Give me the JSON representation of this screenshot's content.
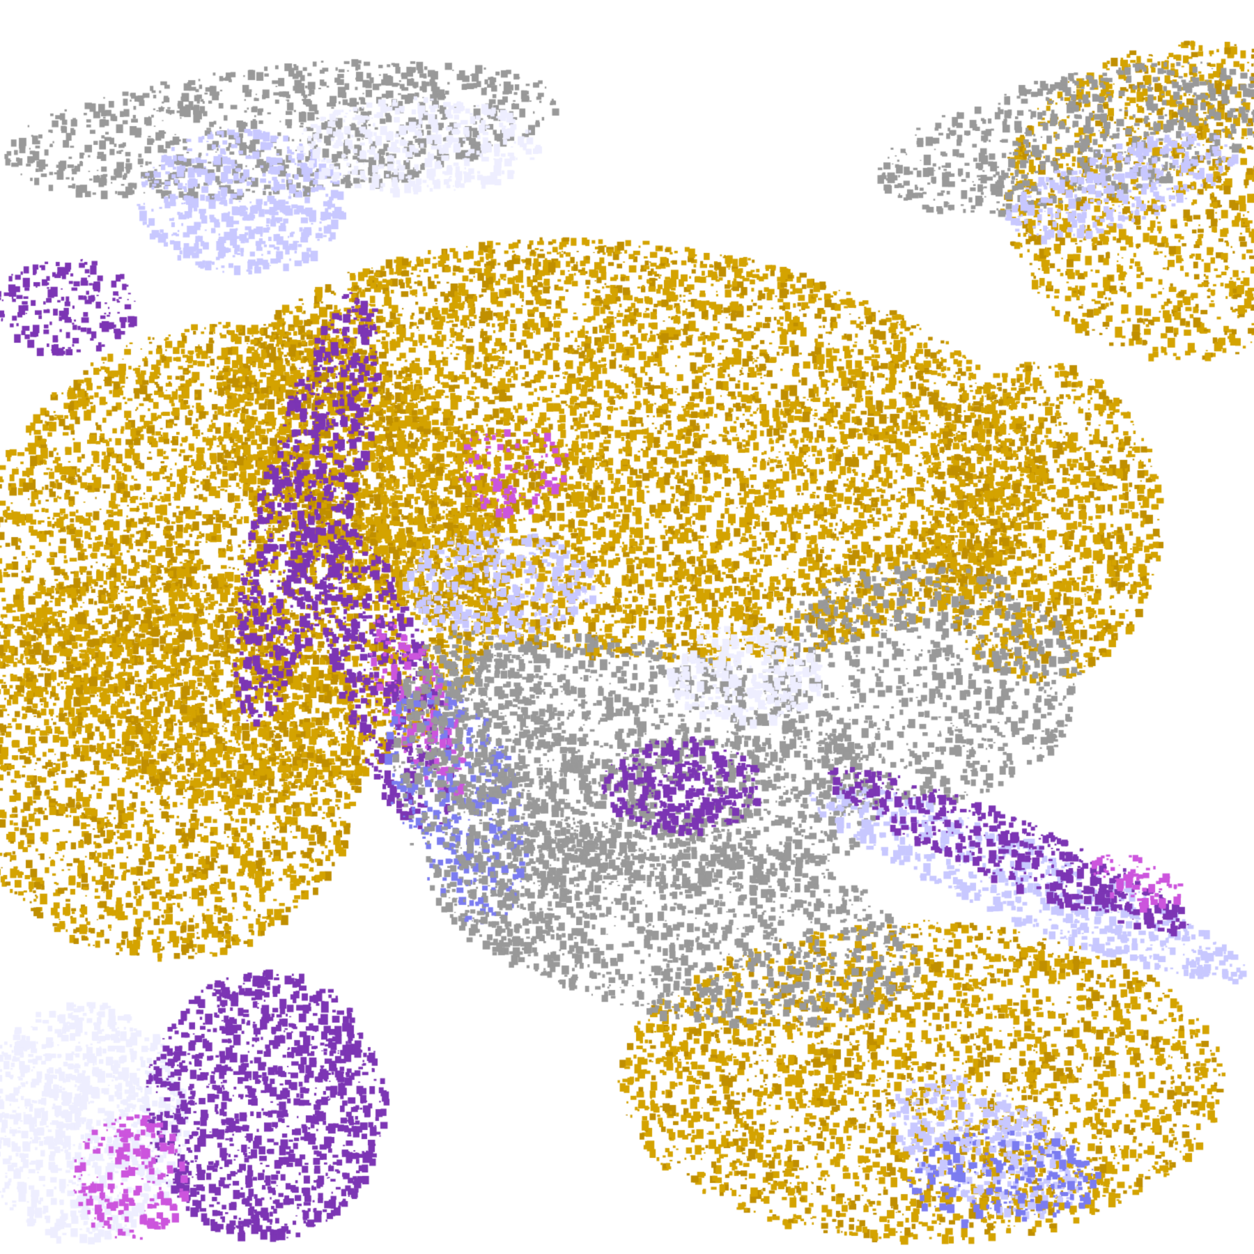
{
  "map": {
    "palette": {
      "clear": "#ffffff",
      "gold": "#d4a300",
      "dark_gold": "#c08f00",
      "purple": "#7c35b4",
      "magenta": "#cc55dd",
      "blue": "#7b7cf0",
      "lavender": "#c8c8ff",
      "pale": "#eeeeff",
      "gray": "#999999",
      "light_gray": "#bbbbbb"
    }
  }
}
